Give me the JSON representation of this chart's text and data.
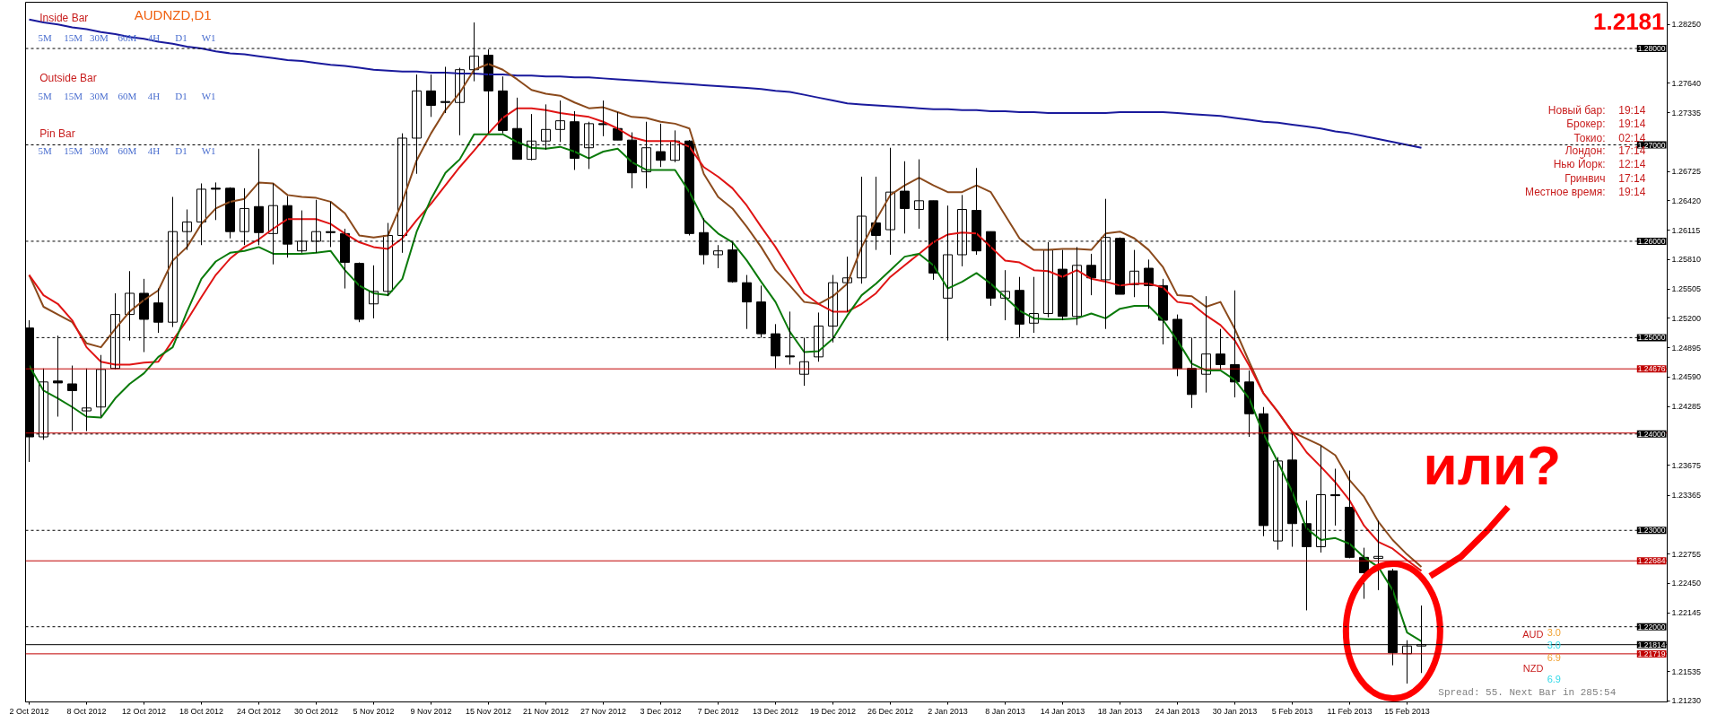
{
  "chart_data": {
    "type": "candlestick",
    "title": "AUDNZD,D1",
    "categories": [
      "2 Oct 2012",
      null,
      null,
      null,
      "8 Oct 2012",
      null,
      null,
      null,
      "12 Oct 2012",
      null,
      null,
      null,
      "18 Oct 2012",
      null,
      null,
      null,
      "24 Oct 2012",
      null,
      null,
      null,
      "30 Oct 2012",
      null,
      null,
      null,
      "5 Nov 2012",
      null,
      null,
      null,
      "9 Nov 2012",
      null,
      null,
      null,
      "15 Nov 2012",
      null,
      null,
      null,
      "21 Nov 2012",
      null,
      null,
      null,
      "27 Nov 2012",
      null,
      null,
      null,
      "3 Dec 2012",
      null,
      null,
      null,
      "7 Dec 2012",
      null,
      null,
      null,
      "13 Dec 2012",
      null,
      null,
      null,
      "19 Dec 2012",
      null,
      null,
      null,
      "26 Dec 2012",
      null,
      null,
      null,
      "2 Jan 2013",
      null,
      null,
      null,
      "8 Jan 2013",
      null,
      null,
      null,
      "14 Jan 2013",
      null,
      null,
      null,
      "18 Jan 2013",
      null,
      null,
      null,
      "24 Jan 2013",
      null,
      null,
      null,
      "30 Jan 2013",
      null,
      null,
      null,
      "5 Feb 2013",
      null,
      null,
      null,
      "11 Feb 2013",
      null,
      null,
      null,
      "15 Feb 2013",
      null
    ],
    "ohlc": [
      [
        1.251,
        1.2518,
        1.2371,
        1.2397
      ],
      [
        1.2397,
        1.2468,
        1.2394,
        1.2454
      ],
      [
        1.2455,
        1.2502,
        1.2418,
        1.2453
      ],
      [
        1.2452,
        1.2471,
        1.2403,
        1.2445
      ],
      [
        1.2424,
        1.2468,
        1.2403,
        1.2427
      ],
      [
        1.2428,
        1.2482,
        1.2418,
        1.2467
      ],
      [
        1.2468,
        1.2546,
        1.2467,
        1.2524
      ],
      [
        1.2524,
        1.2569,
        1.2497,
        1.2546
      ],
      [
        1.2546,
        1.2561,
        1.2485,
        1.2519
      ],
      [
        1.2536,
        1.2551,
        1.2505,
        1.2516
      ],
      [
        1.2516,
        1.2646,
        1.2511,
        1.261
      ],
      [
        1.261,
        1.2633,
        1.2591,
        1.262
      ],
      [
        1.262,
        1.266,
        1.2596,
        1.2654
      ],
      [
        1.2655,
        1.2661,
        1.2622,
        1.2654
      ],
      [
        1.2655,
        1.2656,
        1.2603,
        1.261
      ],
      [
        1.261,
        1.2655,
        1.2596,
        1.2634
      ],
      [
        1.2636,
        1.2696,
        1.2596,
        1.2609
      ],
      [
        1.2608,
        1.266,
        1.2576,
        1.2637
      ],
      [
        1.2637,
        1.2647,
        1.2583,
        1.2597
      ],
      [
        1.259,
        1.2632,
        1.2588,
        1.26
      ],
      [
        1.26,
        1.2643,
        1.2588,
        1.261
      ],
      [
        1.261,
        1.2641,
        1.2594,
        1.2609
      ],
      [
        1.2608,
        1.2613,
        1.2551,
        1.2578
      ],
      [
        1.2577,
        1.2578,
        1.2516,
        1.2519
      ],
      [
        1.2535,
        1.2575,
        1.252,
        1.2548
      ],
      [
        1.2548,
        1.2619,
        1.2543,
        1.2606
      ],
      [
        1.2606,
        1.2712,
        1.2588,
        1.2707
      ],
      [
        1.2707,
        1.2773,
        1.267,
        1.2756
      ],
      [
        1.2756,
        1.2773,
        1.2729,
        1.2741
      ],
      [
        1.2745,
        1.2781,
        1.2733,
        1.2744
      ],
      [
        1.2744,
        1.278,
        1.271,
        1.2778
      ],
      [
        1.2778,
        1.2827,
        1.2766,
        1.2792
      ],
      [
        1.2793,
        1.2799,
        1.2712,
        1.2756
      ],
      [
        1.2756,
        1.2771,
        1.2712,
        1.2715
      ],
      [
        1.2717,
        1.2749,
        1.2685,
        1.2685
      ],
      [
        1.2685,
        1.2732,
        1.2684,
        1.2704
      ],
      [
        1.2704,
        1.2742,
        1.2695,
        1.2716
      ],
      [
        1.2716,
        1.2746,
        1.2703,
        1.2725
      ],
      [
        1.2724,
        1.2735,
        1.2674,
        1.2686
      ],
      [
        1.2697,
        1.2724,
        1.2675,
        1.2722
      ],
      [
        1.2722,
        1.2746,
        1.2709,
        1.2721
      ],
      [
        1.2717,
        1.2734,
        1.2705,
        1.2705
      ],
      [
        1.2705,
        1.2713,
        1.2655,
        1.2671
      ],
      [
        1.2672,
        1.2724,
        1.2655,
        1.2697
      ],
      [
        1.2693,
        1.2722,
        1.2677,
        1.2684
      ],
      [
        1.2684,
        1.2715,
        1.2682,
        1.2704
      ],
      [
        1.2704,
        1.2705,
        1.2606,
        1.2608
      ],
      [
        1.2609,
        1.2624,
        1.2576,
        1.2586
      ],
      [
        1.2586,
        1.2596,
        1.2572,
        1.259
      ],
      [
        1.2591,
        1.2599,
        1.2557,
        1.2558
      ],
      [
        1.2557,
        1.2565,
        1.2509,
        1.2537
      ],
      [
        1.2537,
        1.2554,
        1.25,
        1.2504
      ],
      [
        1.2504,
        1.2514,
        1.2468,
        1.2481
      ],
      [
        1.2481,
        1.2527,
        1.2472,
        1.248
      ],
      [
        1.2462,
        1.25,
        1.245,
        1.2475
      ],
      [
        1.248,
        1.2526,
        1.2475,
        1.2512
      ],
      [
        1.2512,
        1.2565,
        1.2495,
        1.2557
      ],
      [
        1.2557,
        1.2584,
        1.2527,
        1.2562
      ],
      [
        1.2562,
        1.2667,
        1.2556,
        1.2626
      ],
      [
        1.2619,
        1.2667,
        1.2591,
        1.2606
      ],
      [
        1.2612,
        1.2697,
        1.2586,
        1.2651
      ],
      [
        1.2652,
        1.2683,
        1.2608,
        1.2634
      ],
      [
        1.2633,
        1.2685,
        1.2613,
        1.2642
      ],
      [
        1.2642,
        1.2642,
        1.256,
        1.2567
      ],
      [
        1.2541,
        1.2637,
        1.2497,
        1.2586
      ],
      [
        1.2586,
        1.2648,
        1.2574,
        1.2633
      ],
      [
        1.2632,
        1.2676,
        1.2586,
        1.259
      ],
      [
        1.261,
        1.261,
        1.2533,
        1.2541
      ],
      [
        1.2541,
        1.257,
        1.2518,
        1.2548
      ],
      [
        1.2549,
        1.2563,
        1.25,
        1.2514
      ],
      [
        1.2515,
        1.2563,
        1.2505,
        1.2525
      ],
      [
        1.2525,
        1.2599,
        1.2521,
        1.2591
      ],
      [
        1.2571,
        1.2591,
        1.2518,
        1.2522
      ],
      [
        1.2522,
        1.2594,
        1.2513,
        1.2575
      ],
      [
        1.2575,
        1.2587,
        1.2544,
        1.2562
      ],
      [
        1.256,
        1.2644,
        1.2509,
        1.2604
      ],
      [
        1.2603,
        1.2604,
        1.2545,
        1.2545
      ],
      [
        1.2555,
        1.2591,
        1.2542,
        1.2569
      ],
      [
        1.2572,
        1.2581,
        1.253,
        1.2554
      ],
      [
        1.2554,
        1.2561,
        1.2493,
        1.2518
      ],
      [
        1.2519,
        1.2524,
        1.246,
        1.2468
      ],
      [
        1.2468,
        1.25,
        1.2427,
        1.2441
      ],
      [
        1.2462,
        1.2543,
        1.2443,
        1.2483
      ],
      [
        1.2483,
        1.2509,
        1.2467,
        1.2472
      ],
      [
        1.2472,
        1.2549,
        1.2438,
        1.2454
      ],
      [
        1.2454,
        1.2466,
        1.2397,
        1.2421
      ],
      [
        1.2421,
        1.2428,
        1.2294,
        1.2305
      ],
      [
        1.2289,
        1.2376,
        1.228,
        1.2372
      ],
      [
        1.2373,
        1.24,
        1.2283,
        1.2307
      ],
      [
        1.2307,
        1.2331,
        1.2217,
        1.2283
      ],
      [
        1.2283,
        1.2388,
        1.2277,
        1.2337
      ],
      [
        1.2337,
        1.2364,
        1.2305,
        1.2336
      ],
      [
        1.2324,
        1.2362,
        1.2271,
        1.2272
      ],
      [
        1.2272,
        1.2282,
        1.2229,
        1.2256
      ],
      [
        1.2271,
        1.231,
        1.2238,
        1.2273
      ],
      [
        1.2258,
        1.226,
        1.216,
        1.2173
      ],
      [
        1.2172,
        1.2186,
        1.2141,
        1.218
      ],
      [
        1.218,
        1.2222,
        1.2152,
        1.21814
      ]
    ],
    "series": [
      {
        "type": "line",
        "color": "#1a1a9c",
        "values": [
          1.283,
          1.2827,
          1.2825,
          1.2822,
          1.282,
          1.2817,
          1.2815,
          1.2812,
          1.281,
          1.2807,
          1.2805,
          1.2802,
          1.28,
          1.2797,
          1.2795,
          1.2794,
          1.2792,
          1.279,
          1.2788,
          1.2787,
          1.2785,
          1.2783,
          1.2782,
          1.278,
          1.2778,
          1.2777,
          1.2776,
          1.2776,
          1.2775,
          1.2775,
          1.2774,
          1.2774,
          1.2773,
          1.2773,
          1.2772,
          1.2772,
          1.2771,
          1.2771,
          1.277,
          1.277,
          1.2769,
          1.2768,
          1.2767,
          1.2766,
          1.2765,
          1.2764,
          1.2763,
          1.2762,
          1.2761,
          1.276,
          1.2759,
          1.2758,
          1.2756,
          1.2755,
          1.2752,
          1.2749,
          1.2746,
          1.2743,
          1.2742,
          1.2741,
          1.274,
          1.2739,
          1.2738,
          1.2737,
          1.2737,
          1.2736,
          1.2736,
          1.2735,
          1.2735,
          1.2734,
          1.2734,
          1.2733,
          1.2733,
          1.2733,
          1.2733,
          1.2733,
          1.2734,
          1.2734,
          1.2734,
          1.2734,
          1.2733,
          1.2732,
          1.2731,
          1.273,
          1.2728,
          1.2726,
          1.2724,
          1.2723,
          1.2721,
          1.2719,
          1.2717,
          1.2714,
          1.2712,
          1.2709,
          1.2706,
          1.2703,
          1.27,
          1.2697
        ]
      },
      {
        "type": "line",
        "color": "#8b4a1c",
        "values": [
          1.2565,
          1.2532,
          1.2524,
          1.2516,
          1.2494,
          1.249,
          1.2509,
          1.2527,
          1.2539,
          1.2549,
          1.258,
          1.2594,
          1.2618,
          1.2634,
          1.2641,
          1.2644,
          1.2661,
          1.266,
          1.2648,
          1.2646,
          1.2645,
          1.2641,
          1.2629,
          1.2606,
          1.2604,
          1.2606,
          1.2641,
          1.2684,
          1.2712,
          1.2736,
          1.2754,
          1.2778,
          1.2784,
          1.2778,
          1.2768,
          1.2757,
          1.2753,
          1.2751,
          1.2744,
          1.2738,
          1.2739,
          1.2734,
          1.2729,
          1.2728,
          1.2724,
          1.2722,
          1.2717,
          1.267,
          1.2646,
          1.2634,
          1.2615,
          1.2594,
          1.257,
          1.2554,
          1.2537,
          1.2535,
          1.2543,
          1.2556,
          1.2594,
          1.2622,
          1.2648,
          1.2658,
          1.2666,
          1.2658,
          1.2651,
          1.2651,
          1.2658,
          1.2651,
          1.2627,
          1.2603,
          1.2591,
          1.2591,
          1.2592,
          1.2592,
          1.2591,
          1.2608,
          1.261,
          1.2603,
          1.2591,
          1.2573,
          1.2544,
          1.2543,
          1.2532,
          1.2537,
          1.2509,
          1.2475,
          1.2442,
          1.2423,
          1.2402,
          1.2395,
          1.2388,
          1.2378,
          1.2352,
          1.2335,
          1.2309,
          1.229,
          1.2275,
          1.2262
        ]
      },
      {
        "type": "line",
        "color": "#e01414",
        "values": [
          1.2565,
          1.2544,
          1.2535,
          1.2518,
          1.249,
          1.2475,
          1.2472,
          1.2472,
          1.2474,
          1.2475,
          1.2497,
          1.2518,
          1.2542,
          1.2565,
          1.2582,
          1.2594,
          1.2602,
          1.2613,
          1.2623,
          1.2623,
          1.2623,
          1.2618,
          1.2608,
          1.2599,
          1.2594,
          1.2592,
          1.2603,
          1.2622,
          1.2639,
          1.2658,
          1.2677,
          1.2694,
          1.2712,
          1.2728,
          1.2738,
          1.2738,
          1.2736,
          1.2733,
          1.2731,
          1.2729,
          1.2724,
          1.2717,
          1.2708,
          1.2704,
          1.2704,
          1.2704,
          1.2698,
          1.2677,
          1.2667,
          1.2655,
          1.2637,
          1.2615,
          1.2594,
          1.257,
          1.2546,
          1.2535,
          1.2527,
          1.2527,
          1.2535,
          1.2546,
          1.2563,
          1.2575,
          1.2587,
          1.2599,
          1.2607,
          1.2609,
          1.2608,
          1.2594,
          1.258,
          1.2578,
          1.257,
          1.2569,
          1.2563,
          1.257,
          1.2561,
          1.2558,
          1.2554,
          1.2556,
          1.2556,
          1.2552,
          1.2537,
          1.2535,
          1.2523,
          1.2513,
          1.2497,
          1.2471,
          1.2442,
          1.2423,
          1.2402,
          1.2381,
          1.2366,
          1.235,
          1.2331,
          1.2305,
          1.2288,
          1.2281,
          1.2269,
          1.2258
        ]
      },
      {
        "type": "line",
        "color": "#0a7a0a",
        "values": [
          1.2471,
          1.2445,
          1.2437,
          1.2428,
          1.2418,
          1.2417,
          1.2437,
          1.2452,
          1.2463,
          1.248,
          1.249,
          1.2527,
          1.2561,
          1.2579,
          1.2588,
          1.259,
          1.2594,
          1.2587,
          1.2587,
          1.2587,
          1.2588,
          1.259,
          1.257,
          1.2554,
          1.2546,
          1.2544,
          1.2561,
          1.261,
          1.2644,
          1.2671,
          1.2685,
          1.2711,
          1.2711,
          1.2711,
          1.2703,
          1.2697,
          1.2696,
          1.2698,
          1.2693,
          1.2686,
          1.2693,
          1.2696,
          1.2682,
          1.2674,
          1.2674,
          1.2674,
          1.2651,
          1.2622,
          1.2608,
          1.2599,
          1.258,
          1.2558,
          1.2537,
          1.2506,
          1.2485,
          1.2486,
          1.2499,
          1.2523,
          1.2544,
          1.2556,
          1.257,
          1.2584,
          1.2587,
          1.2575,
          1.2551,
          1.2558,
          1.2567,
          1.2556,
          1.2542,
          1.2528,
          1.252,
          1.2519,
          1.2519,
          1.252,
          1.2525,
          1.252,
          1.253,
          1.2533,
          1.2533,
          1.2518,
          1.2497,
          1.2473,
          1.2466,
          1.2466,
          1.2456,
          1.2437,
          1.24,
          1.2371,
          1.234,
          1.2302,
          1.229,
          1.2292,
          1.2286,
          1.2272,
          1.2262,
          1.2238,
          1.2194,
          1.2185
        ]
      }
    ],
    "ylim": [
      1.2122,
      1.2848
    ],
    "yticks": [
      {
        "value": 1.2825,
        "label": "1.28250"
      },
      {
        "value": 1.2764,
        "label": "1.27640"
      },
      {
        "value": 1.27335,
        "label": "1.27335"
      },
      {
        "value": 1.26725,
        "label": "1.26725"
      },
      {
        "value": 1.2642,
        "label": "1.26420"
      },
      {
        "value": 1.26115,
        "label": "1.26115"
      },
      {
        "value": 1.2581,
        "label": "1.25810"
      },
      {
        "value": 1.25505,
        "label": "1.25505"
      },
      {
        "value": 1.252,
        "label": "1.25200"
      },
      {
        "value": 1.24895,
        "label": "1.24895"
      },
      {
        "value": 1.2459,
        "label": "1.24590"
      },
      {
        "value": 1.24285,
        "label": "1.24285"
      },
      {
        "value": 1.23675,
        "label": "1.23675"
      },
      {
        "value": 1.23365,
        "label": "1.23365"
      },
      {
        "value": 1.22755,
        "label": "1.22755"
      },
      {
        "value": 1.2245,
        "label": "1.22450"
      },
      {
        "value": 1.22145,
        "label": "1.22145"
      },
      {
        "value": 1.21535,
        "label": "1.21535"
      },
      {
        "value": 1.2123,
        "label": "1.21230"
      }
    ],
    "ref_lines": [
      {
        "axis": "y",
        "value": 1.28,
        "label": "1.28000",
        "color": "#000000",
        "line_style": "dashed"
      },
      {
        "axis": "y",
        "value": 1.27,
        "label": "1.27000",
        "color": "#000000",
        "line_style": "dashed"
      },
      {
        "axis": "y",
        "value": 1.26,
        "label": "1.26000",
        "color": "#000000",
        "line_style": "dashed"
      },
      {
        "axis": "y",
        "value": 1.25,
        "label": "1.25000",
        "color": "#000000",
        "line_style": "dashed"
      },
      {
        "axis": "y",
        "value": 1.24,
        "label": "1.24000",
        "color": "#000000",
        "line_style": "dashed"
      },
      {
        "axis": "y",
        "value": 1.23,
        "label": "1.23000",
        "color": "#000000",
        "line_style": "dashed"
      },
      {
        "axis": "y",
        "value": 1.22,
        "label": "1.22000",
        "color": "#000000",
        "line_style": "dashed"
      },
      {
        "axis": "y",
        "value": 1.24676,
        "label": "1.24676",
        "color": "#c00000",
        "line_style": "solid"
      },
      {
        "axis": "y",
        "value": 1.2401,
        "label": null,
        "color": "#c00000",
        "line_style": "solid"
      },
      {
        "axis": "y",
        "value": 1.22684,
        "label": "1.22684",
        "color": "#c00000",
        "line_style": "solid"
      },
      {
        "axis": "y",
        "value": 1.21814,
        "label": "1.21814",
        "color": "#000000",
        "line_style": "solid"
      },
      {
        "axis": "y",
        "value": 1.21719,
        "label": "1.21719",
        "color": "#c00000",
        "line_style": "solid"
      }
    ],
    "annotations": [
      "1.2181",
      "Inside Bar",
      "5M",
      "15M",
      "30M",
      "60M",
      "4H",
      "D1",
      "W1",
      "Outside Bar",
      "5M",
      "15M",
      "30M",
      "60M",
      "4H",
      "D1",
      "W1",
      "Pin Bar",
      "5M",
      "15M",
      "30M",
      "60M",
      "4H",
      "D1",
      "W1",
      "Новый бар:",
      "19:14",
      "Брокер:",
      "19:14",
      "Токио:",
      "02:14",
      "Лондон:",
      "17:14",
      "Нью Йорк:",
      "12:14",
      "Гринвич",
      "17:14",
      "Местное время:",
      "19:14",
      "3.0",
      "AUD",
      "3.0",
      "6.9",
      "NZD",
      "6.9",
      "Spread: 55. Next Bar in 285:54",
      "или?"
    ]
  }
}
